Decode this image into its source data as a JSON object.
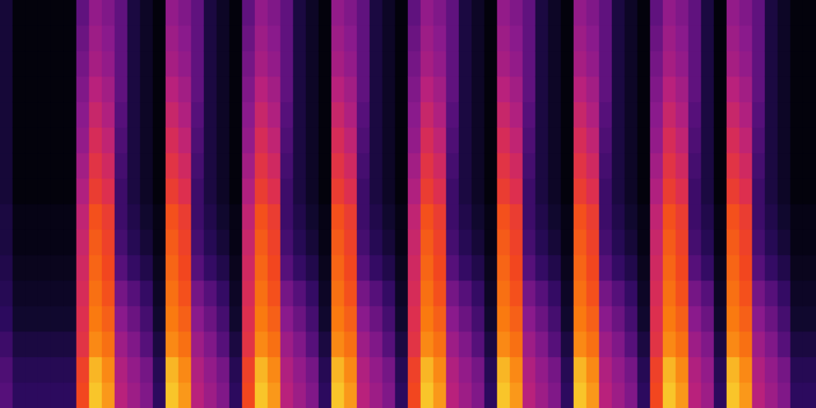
{
  "chart_data": {
    "type": "heatmap",
    "tick_labels": false,
    "grid": false,
    "zlim": [
      0,
      100
    ],
    "cells": [
      [
        30,
        28,
        24,
        20,
        18,
        16,
        14,
        14,
        12,
        12,
        12,
        12,
        12,
        12,
        12,
        12
      ],
      [
        20,
        18,
        14,
        10,
        8,
        6,
        4,
        4,
        2,
        2,
        2,
        2,
        2,
        2,
        2,
        2
      ],
      [
        20,
        18,
        14,
        10,
        8,
        6,
        4,
        4,
        2,
        2,
        2,
        2,
        2,
        2,
        2,
        2
      ],
      [
        20,
        18,
        14,
        10,
        8,
        6,
        4,
        4,
        2,
        2,
        2,
        2,
        2,
        2,
        2,
        2
      ],
      [
        20,
        18,
        14,
        10,
        8,
        6,
        4,
        4,
        2,
        2,
        2,
        2,
        2,
        2,
        2,
        2
      ],
      [
        20,
        18,
        14,
        10,
        8,
        6,
        4,
        4,
        2,
        2,
        2,
        2,
        2,
        2,
        2,
        2
      ],
      [
        70,
        68,
        62,
        60,
        58,
        56,
        54,
        52,
        48,
        45,
        42,
        40,
        38,
        36,
        34,
        32
      ],
      [
        90,
        88,
        82,
        80,
        78,
        76,
        74,
        72,
        66,
        62,
        58,
        54,
        50,
        46,
        44,
        42
      ],
      [
        84,
        82,
        78,
        75,
        72,
        70,
        68,
        66,
        60,
        56,
        52,
        48,
        45,
        42,
        40,
        38
      ],
      [
        50,
        48,
        44,
        40,
        36,
        30,
        26,
        24,
        24,
        26,
        28,
        30,
        32,
        32,
        32,
        32
      ],
      [
        44,
        42,
        38,
        34,
        30,
        22,
        18,
        16,
        14,
        14,
        14,
        14,
        14,
        14,
        14,
        14
      ],
      [
        38,
        36,
        30,
        26,
        22,
        16,
        12,
        10,
        8,
        8,
        8,
        8,
        8,
        8,
        8,
        8
      ],
      [
        20,
        18,
        14,
        10,
        8,
        6,
        4,
        4,
        2,
        2,
        2,
        2,
        2,
        2,
        2,
        2
      ],
      [
        90,
        88,
        82,
        80,
        78,
        76,
        74,
        72,
        66,
        62,
        58,
        54,
        50,
        46,
        44,
        42
      ],
      [
        84,
        82,
        78,
        75,
        72,
        70,
        68,
        66,
        60,
        56,
        52,
        48,
        45,
        42,
        40,
        38
      ],
      [
        50,
        48,
        44,
        40,
        36,
        30,
        26,
        24,
        24,
        26,
        28,
        30,
        32,
        32,
        32,
        32
      ],
      [
        44,
        42,
        38,
        34,
        30,
        22,
        18,
        16,
        14,
        14,
        14,
        14,
        14,
        14,
        14,
        14
      ],
      [
        38,
        36,
        30,
        26,
        22,
        16,
        12,
        10,
        8,
        8,
        8,
        8,
        8,
        8,
        8,
        8
      ],
      [
        20,
        18,
        14,
        10,
        8,
        6,
        4,
        4,
        2,
        2,
        2,
        2,
        2,
        2,
        2,
        2
      ],
      [
        70,
        68,
        62,
        60,
        58,
        56,
        54,
        52,
        48,
        45,
        42,
        40,
        38,
        36,
        34,
        32
      ],
      [
        90,
        88,
        82,
        80,
        78,
        76,
        74,
        72,
        66,
        62,
        58,
        54,
        50,
        46,
        44,
        42
      ],
      [
        84,
        82,
        78,
        75,
        72,
        70,
        68,
        66,
        60,
        56,
        52,
        48,
        45,
        42,
        40,
        38
      ],
      [
        50,
        48,
        44,
        40,
        36,
        30,
        26,
        24,
        24,
        26,
        28,
        30,
        32,
        32,
        32,
        32
      ],
      [
        44,
        42,
        38,
        34,
        30,
        22,
        18,
        16,
        14,
        14,
        14,
        14,
        14,
        14,
        14,
        14
      ],
      [
        38,
        36,
        30,
        26,
        22,
        16,
        12,
        10,
        8,
        8,
        8,
        8,
        8,
        8,
        8,
        8
      ],
      [
        20,
        18,
        14,
        10,
        8,
        6,
        4,
        4,
        2,
        2,
        2,
        2,
        2,
        2,
        2,
        2
      ],
      [
        90,
        88,
        82,
        80,
        78,
        76,
        74,
        72,
        66,
        62,
        58,
        54,
        50,
        46,
        44,
        42
      ],
      [
        84,
        82,
        78,
        75,
        72,
        70,
        68,
        66,
        60,
        56,
        52,
        48,
        45,
        42,
        40,
        38
      ],
      [
        50,
        48,
        44,
        40,
        36,
        30,
        26,
        24,
        24,
        26,
        28,
        30,
        32,
        32,
        32,
        32
      ],
      [
        44,
        42,
        38,
        34,
        30,
        22,
        18,
        16,
        14,
        14,
        14,
        14,
        14,
        14,
        14,
        14
      ],
      [
        38,
        36,
        30,
        26,
        22,
        16,
        12,
        10,
        8,
        8,
        8,
        8,
        8,
        8,
        8,
        8
      ],
      [
        20,
        18,
        14,
        10,
        8,
        6,
        4,
        4,
        2,
        2,
        2,
        2,
        2,
        2,
        2,
        2
      ],
      [
        70,
        68,
        62,
        60,
        58,
        56,
        54,
        52,
        48,
        45,
        42,
        40,
        38,
        36,
        34,
        32
      ],
      [
        90,
        88,
        82,
        80,
        78,
        76,
        74,
        72,
        66,
        62,
        58,
        54,
        50,
        46,
        44,
        42
      ],
      [
        84,
        82,
        78,
        75,
        72,
        70,
        68,
        66,
        60,
        56,
        52,
        48,
        45,
        42,
        40,
        38
      ],
      [
        50,
        48,
        44,
        40,
        36,
        30,
        26,
        24,
        24,
        26,
        28,
        30,
        32,
        32,
        32,
        32
      ],
      [
        44,
        42,
        38,
        34,
        30,
        22,
        18,
        16,
        14,
        14,
        14,
        14,
        14,
        14,
        14,
        14
      ],
      [
        38,
        36,
        30,
        26,
        22,
        16,
        12,
        10,
        8,
        8,
        8,
        8,
        8,
        8,
        8,
        8
      ],
      [
        20,
        18,
        14,
        10,
        8,
        6,
        4,
        4,
        2,
        2,
        2,
        2,
        2,
        2,
        2,
        2
      ],
      [
        90,
        88,
        82,
        80,
        78,
        76,
        74,
        72,
        66,
        62,
        58,
        54,
        50,
        46,
        44,
        42
      ],
      [
        84,
        82,
        78,
        75,
        72,
        70,
        68,
        66,
        60,
        56,
        52,
        48,
        45,
        42,
        40,
        38
      ],
      [
        50,
        48,
        44,
        40,
        36,
        30,
        26,
        24,
        24,
        26,
        28,
        30,
        32,
        32,
        32,
        32
      ],
      [
        44,
        42,
        38,
        34,
        30,
        22,
        18,
        16,
        14,
        14,
        14,
        14,
        14,
        14,
        14,
        14
      ],
      [
        38,
        36,
        30,
        26,
        22,
        16,
        12,
        10,
        8,
        8,
        8,
        8,
        8,
        8,
        8,
        8
      ],
      [
        20,
        18,
        14,
        10,
        8,
        6,
        4,
        4,
        2,
        2,
        2,
        2,
        2,
        2,
        2,
        2
      ],
      [
        90,
        88,
        82,
        80,
        78,
        76,
        74,
        72,
        66,
        62,
        58,
        54,
        50,
        46,
        44,
        42
      ],
      [
        84,
        82,
        78,
        75,
        72,
        70,
        68,
        66,
        60,
        56,
        52,
        48,
        45,
        42,
        40,
        38
      ],
      [
        50,
        48,
        44,
        40,
        36,
        30,
        26,
        24,
        24,
        26,
        28,
        30,
        32,
        32,
        32,
        32
      ],
      [
        44,
        42,
        38,
        34,
        30,
        22,
        18,
        16,
        14,
        14,
        14,
        14,
        14,
        14,
        14,
        14
      ],
      [
        38,
        36,
        30,
        26,
        22,
        16,
        12,
        10,
        8,
        8,
        8,
        8,
        8,
        8,
        8,
        8
      ],
      [
        20,
        18,
        14,
        10,
        8,
        6,
        4,
        4,
        2,
        2,
        2,
        2,
        2,
        2,
        2,
        2
      ],
      [
        70,
        68,
        62,
        60,
        58,
        56,
        54,
        52,
        48,
        45,
        42,
        40,
        38,
        36,
        34,
        32
      ],
      [
        90,
        88,
        82,
        80,
        78,
        76,
        74,
        72,
        66,
        62,
        58,
        54,
        50,
        46,
        44,
        42
      ],
      [
        84,
        82,
        78,
        75,
        72,
        70,
        68,
        66,
        60,
        56,
        52,
        48,
        45,
        42,
        40,
        38
      ],
      [
        50,
        48,
        44,
        40,
        36,
        30,
        26,
        24,
        24,
        26,
        28,
        30,
        32,
        32,
        32,
        32
      ],
      [
        44,
        42,
        38,
        34,
        30,
        22,
        18,
        16,
        14,
        14,
        14,
        14,
        14,
        14,
        14,
        14
      ],
      [
        20,
        18,
        14,
        10,
        8,
        6,
        4,
        4,
        2,
        2,
        2,
        2,
        2,
        2,
        2,
        2
      ],
      [
        90,
        88,
        82,
        80,
        78,
        76,
        74,
        72,
        66,
        62,
        58,
        54,
        50,
        46,
        44,
        42
      ],
      [
        84,
        82,
        78,
        75,
        72,
        70,
        68,
        66,
        60,
        56,
        52,
        48,
        45,
        42,
        40,
        38
      ],
      [
        50,
        48,
        44,
        40,
        36,
        30,
        26,
        24,
        24,
        26,
        28,
        30,
        32,
        32,
        32,
        32
      ],
      [
        44,
        42,
        38,
        34,
        30,
        22,
        18,
        16,
        14,
        14,
        14,
        14,
        14,
        14,
        14,
        14
      ],
      [
        38,
        36,
        30,
        26,
        22,
        16,
        12,
        10,
        8,
        8,
        8,
        8,
        8,
        8,
        8,
        8
      ],
      [
        20,
        18,
        14,
        10,
        8,
        6,
        4,
        4,
        2,
        2,
        2,
        2,
        2,
        2,
        2,
        2
      ],
      [
        20,
        18,
        14,
        10,
        8,
        6,
        4,
        4,
        2,
        2,
        2,
        2,
        2,
        2,
        2,
        2
      ]
    ]
  }
}
